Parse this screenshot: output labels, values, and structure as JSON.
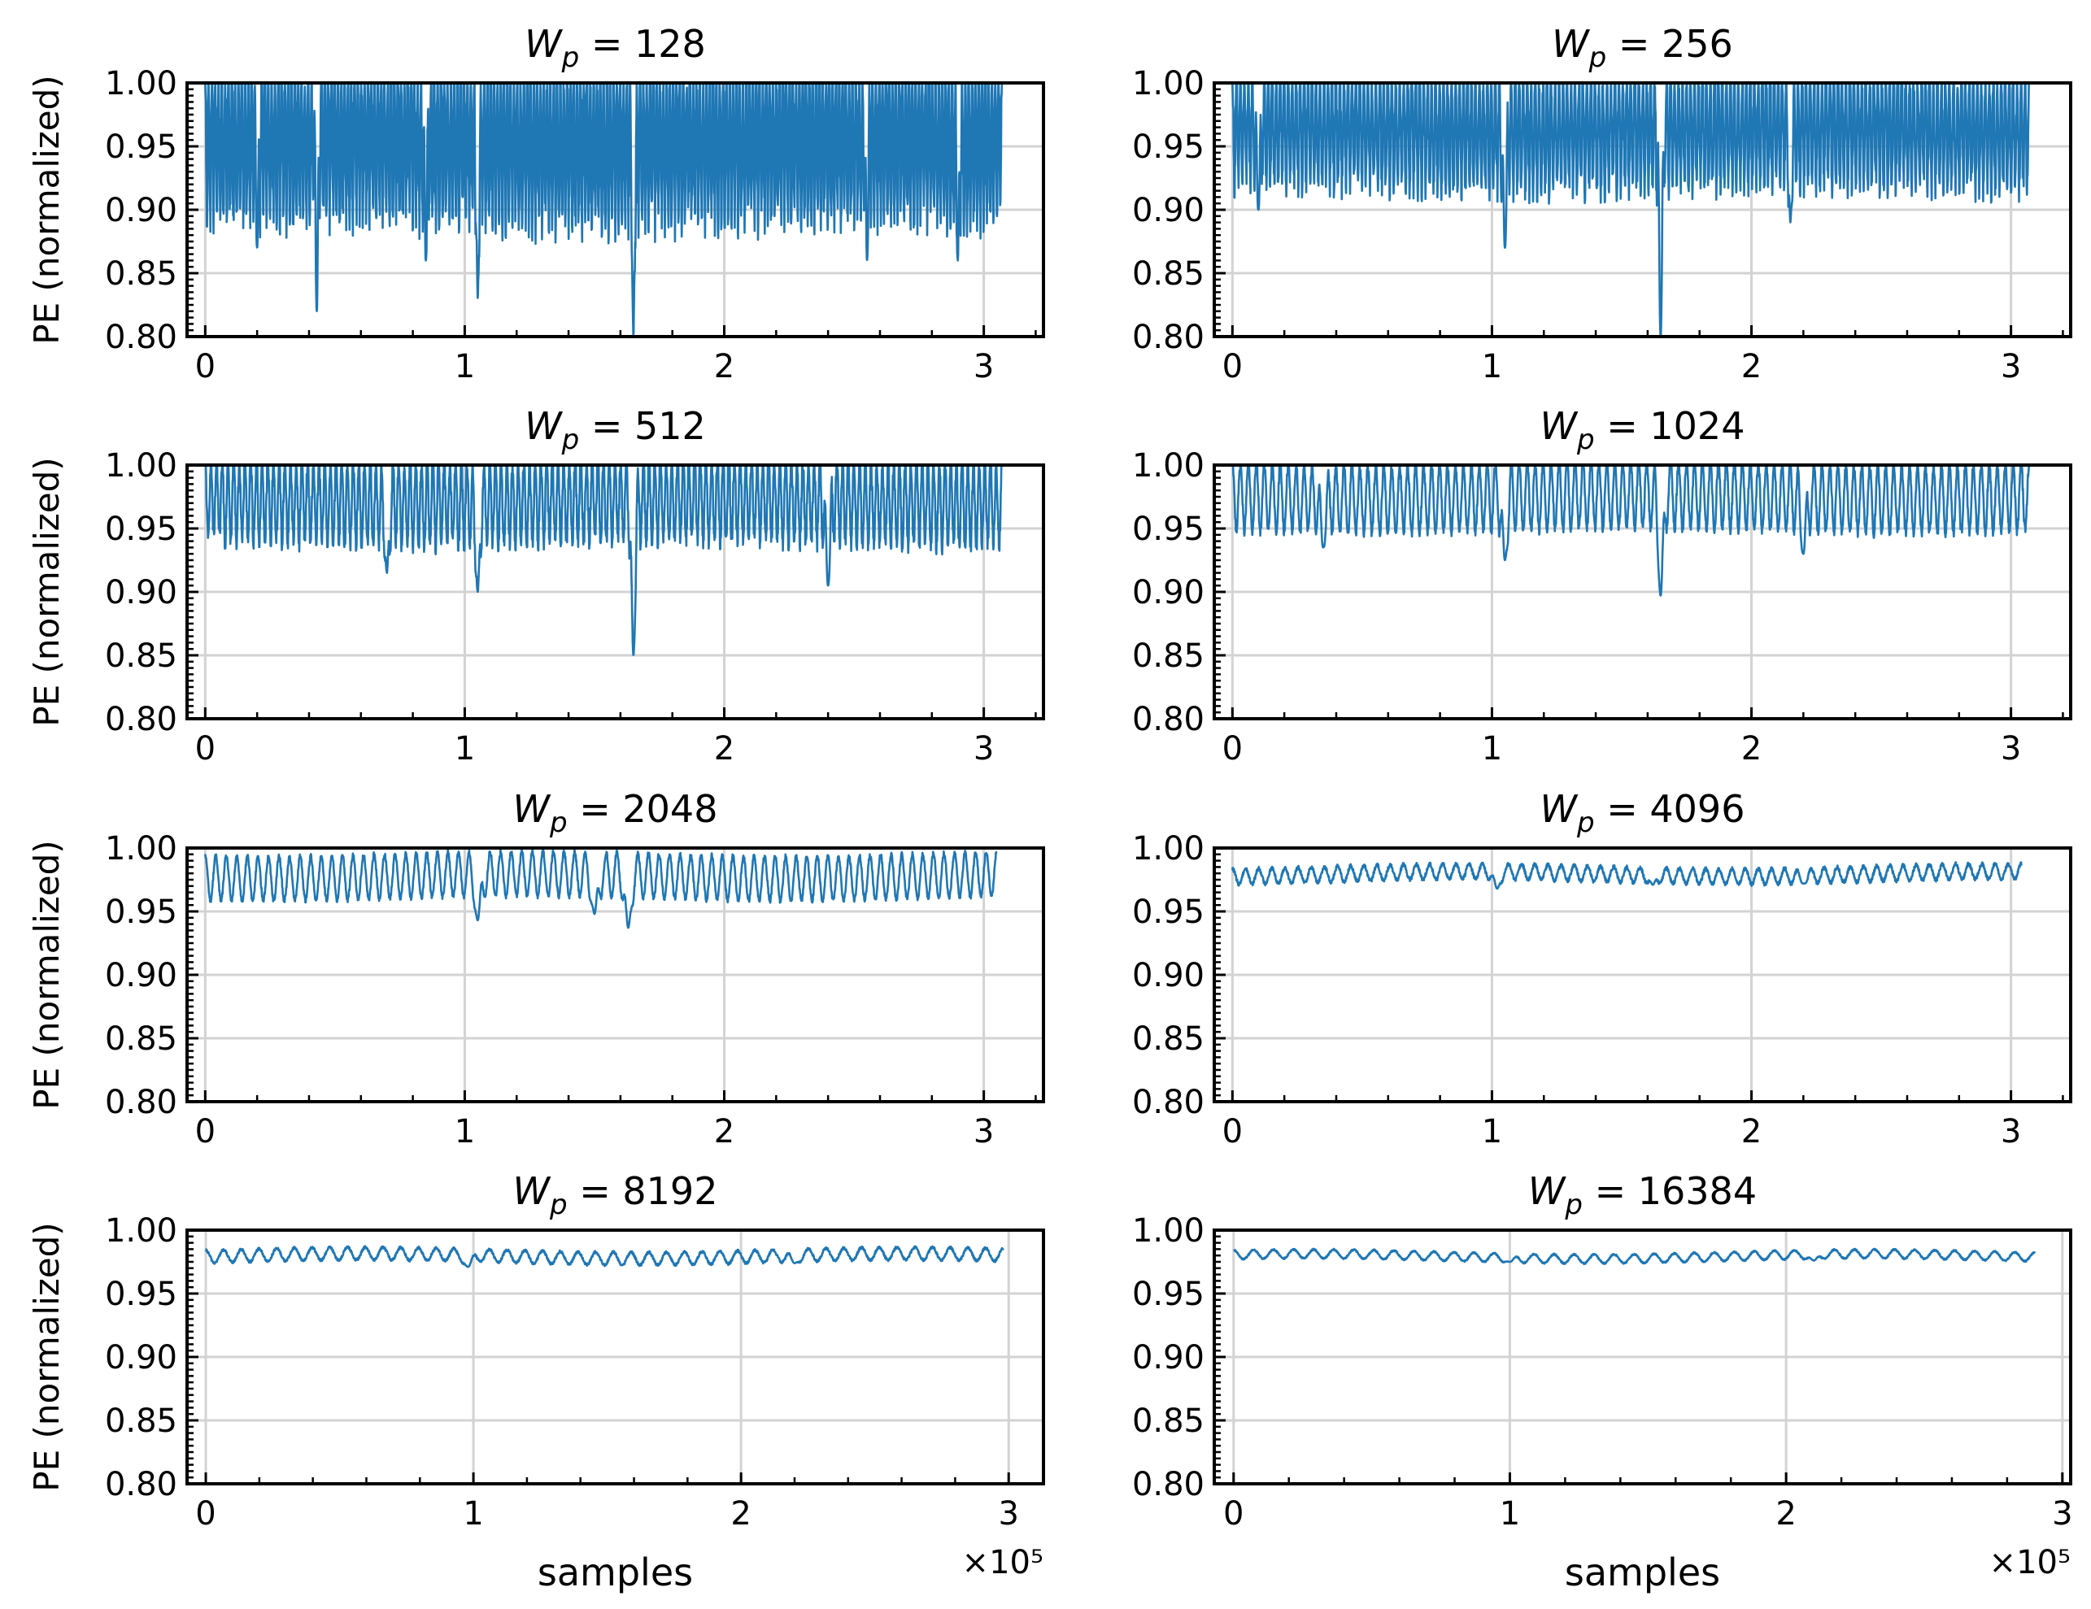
{
  "chart_data": [
    {
      "type": "line",
      "title_prefix": "W",
      "title_sub": "p",
      "title_value": "= 128",
      "xlabel": "",
      "ylabel": "PE (normalized)",
      "xlim": [
        -0.07,
        3.23
      ],
      "ylim": [
        0.8,
        1.0
      ],
      "xticks": [
        "0",
        "1",
        "2",
        "3"
      ],
      "yticks": [
        "0.80",
        "0.85",
        "0.90",
        "0.95",
        "1.00"
      ],
      "x_offset": "",
      "series": [
        {
          "name": "PE",
          "color": "#1f77b4",
          "x_start": 0,
          "x_end": 3.07,
          "baseline": 0.965,
          "min_typical": 0.88,
          "max": 1.0,
          "dips": [
            [
              0.43,
              0.82
            ],
            [
              1.05,
              0.83
            ],
            [
              1.65,
              0.8
            ],
            [
              0.2,
              0.87
            ],
            [
              0.85,
              0.86
            ],
            [
              2.9,
              0.86
            ],
            [
              2.55,
              0.86
            ]
          ],
          "osc_cycles": 240,
          "noise": 0.018
        }
      ]
    },
    {
      "type": "line",
      "title_prefix": "W",
      "title_sub": "p",
      "title_value": "= 256",
      "xlabel": "",
      "ylabel": "",
      "xlim": [
        -0.07,
        3.23
      ],
      "ylim": [
        0.8,
        1.0
      ],
      "xticks": [
        "0",
        "1",
        "2",
        "3"
      ],
      "yticks": [
        "0.80",
        "0.85",
        "0.90",
        "0.95",
        "1.00"
      ],
      "x_offset": "",
      "series": [
        {
          "name": "PE",
          "color": "#1f77b4",
          "x_start": 0,
          "x_end": 3.07,
          "baseline": 0.97,
          "min_typical": 0.91,
          "max": 1.0,
          "dips": [
            [
              1.65,
              0.8
            ],
            [
              1.05,
              0.87
            ],
            [
              0.1,
              0.9
            ],
            [
              2.15,
              0.89
            ]
          ],
          "osc_cycles": 200,
          "noise": 0.012
        }
      ]
    },
    {
      "type": "line",
      "title_prefix": "W",
      "title_sub": "p",
      "title_value": "= 512",
      "xlabel": "",
      "ylabel": "PE (normalized)",
      "xlim": [
        -0.07,
        3.23
      ],
      "ylim": [
        0.8,
        1.0
      ],
      "xticks": [
        "0",
        "1",
        "2",
        "3"
      ],
      "yticks": [
        "0.80",
        "0.85",
        "0.90",
        "0.95",
        "1.00"
      ],
      "x_offset": "",
      "series": [
        {
          "name": "PE",
          "color": "#1f77b4",
          "x_start": 0,
          "x_end": 3.07,
          "baseline": 0.975,
          "min_typical": 0.935,
          "max": 1.0,
          "dips": [
            [
              1.65,
              0.85
            ],
            [
              1.05,
              0.9
            ],
            [
              2.4,
              0.905
            ],
            [
              0.7,
              0.915
            ]
          ],
          "osc_cycles": 140,
          "noise": 0.008
        }
      ]
    },
    {
      "type": "line",
      "title_prefix": "W",
      "title_sub": "p",
      "title_value": "= 1024",
      "xlabel": "",
      "ylabel": "",
      "xlim": [
        -0.07,
        3.23
      ],
      "ylim": [
        0.8,
        1.0
      ],
      "xticks": [
        "0",
        "1",
        "2",
        "3"
      ],
      "yticks": [
        "0.80",
        "0.85",
        "0.90",
        "0.95",
        "1.00"
      ],
      "x_offset": "",
      "series": [
        {
          "name": "PE",
          "color": "#1f77b4",
          "x_start": 0,
          "x_end": 3.07,
          "baseline": 0.978,
          "min_typical": 0.945,
          "max": 0.998,
          "dips": [
            [
              1.65,
              0.897
            ],
            [
              1.05,
              0.925
            ],
            [
              2.2,
              0.93
            ],
            [
              0.35,
              0.935
            ]
          ],
          "osc_cycles": 100,
          "noise": 0.004
        }
      ]
    },
    {
      "type": "line",
      "title_prefix": "W",
      "title_sub": "p",
      "title_value": "= 2048",
      "xlabel": "",
      "ylabel": "PE (normalized)",
      "xlim": [
        -0.07,
        3.23
      ],
      "ylim": [
        0.8,
        1.0
      ],
      "xticks": [
        "0",
        "1",
        "2",
        "3"
      ],
      "yticks": [
        "0.80",
        "0.85",
        "0.90",
        "0.95",
        "1.00"
      ],
      "x_offset": "",
      "series": [
        {
          "name": "PE",
          "color": "#1f77b4",
          "x_start": 0,
          "x_end": 3.05,
          "baseline": 0.978,
          "min_typical": 0.96,
          "max": 0.995,
          "dips": [
            [
              1.63,
              0.937
            ],
            [
              1.05,
              0.943
            ],
            [
              1.5,
              0.948
            ]
          ],
          "osc_cycles": 75,
          "noise": 0.002
        }
      ]
    },
    {
      "type": "line",
      "title_prefix": "W",
      "title_sub": "p",
      "title_value": "= 4096",
      "xlabel": "",
      "ylabel": "",
      "xlim": [
        -0.07,
        3.23
      ],
      "ylim": [
        0.8,
        1.0
      ],
      "xticks": [
        "0",
        "1",
        "2",
        "3"
      ],
      "yticks": [
        "0.80",
        "0.85",
        "0.90",
        "0.95",
        "1.00"
      ],
      "x_offset": "",
      "series": [
        {
          "name": "PE",
          "color": "#1f77b4",
          "x_start": 0,
          "x_end": 3.04,
          "baseline": 0.979,
          "min_typical": 0.974,
          "max": 0.986,
          "dips": [
            [
              1.02,
              0.968
            ],
            [
              1.62,
              0.971
            ],
            [
              2.2,
              0.972
            ]
          ],
          "osc_cycles": 60,
          "noise": 0.0015
        }
      ]
    },
    {
      "type": "line",
      "title_prefix": "W",
      "title_sub": "p",
      "title_value": "= 8192",
      "xlabel": "samples",
      "ylabel": "PE (normalized)",
      "xlim": [
        -0.07,
        3.13
      ],
      "ylim": [
        0.8,
        1.0
      ],
      "xticks": [
        "0",
        "1",
        "2",
        "3"
      ],
      "yticks": [
        "0.80",
        "0.85",
        "0.90",
        "0.95",
        "1.00"
      ],
      "x_offset": "×10⁵",
      "series": [
        {
          "name": "PE",
          "color": "#1f77b4",
          "x_start": 0,
          "x_end": 2.98,
          "baseline": 0.979,
          "min_typical": 0.975,
          "max": 0.985,
          "dips": [
            [
              0.98,
              0.971
            ],
            [
              2.2,
              0.974
            ]
          ],
          "osc_cycles": 45,
          "noise": 0.001
        }
      ]
    },
    {
      "type": "line",
      "title_prefix": "W",
      "title_sub": "p",
      "title_value": "= 16384",
      "xlabel": "samples",
      "ylabel": "",
      "xlim": [
        -0.07,
        3.03
      ],
      "ylim": [
        0.8,
        1.0
      ],
      "xticks": [
        "0",
        "1",
        "2",
        "3"
      ],
      "yticks": [
        "0.80",
        "0.85",
        "0.90",
        "0.95",
        "1.00"
      ],
      "x_offset": "×10⁵",
      "series": [
        {
          "name": "PE",
          "color": "#1f77b4",
          "x_start": 0,
          "x_end": 2.9,
          "baseline": 0.979,
          "min_typical": 0.976,
          "max": 0.983,
          "dips": [
            [
              1.0,
              0.975
            ],
            [
              2.1,
              0.976
            ]
          ],
          "osc_cycles": 40,
          "noise": 0.0006
        }
      ]
    }
  ]
}
